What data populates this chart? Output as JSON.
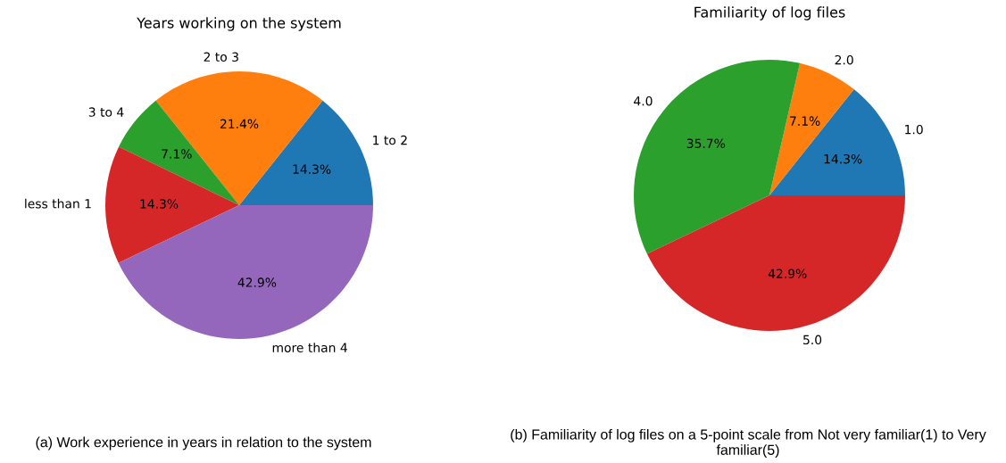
{
  "chart_data": [
    {
      "type": "pie",
      "title": "Years working on the system",
      "categories": [
        "1 to 2",
        "2 to 3",
        "3 to 4",
        "less than 1",
        "more than 4"
      ],
      "values": [
        14.3,
        21.4,
        7.1,
        14.3,
        42.9
      ],
      "value_labels": [
        "14.3%",
        "21.4%",
        "7.1%",
        "14.3%",
        "42.9%"
      ],
      "colors": [
        "#1f77b4",
        "#ff7f0e",
        "#2ca02c",
        "#d62728",
        "#9467bd"
      ],
      "annotations": [
        "(a) Work experience in years in relation to the system"
      ]
    },
    {
      "type": "pie",
      "title": "Familiarity of log files",
      "categories": [
        "1.0",
        "2.0",
        "4.0",
        "5.0"
      ],
      "values": [
        14.3,
        7.1,
        35.7,
        42.9
      ],
      "value_labels": [
        "14.3%",
        "7.1%",
        "35.7%",
        "42.9%"
      ],
      "colors": [
        "#1f77b4",
        "#ff7f0e",
        "#2ca02c",
        "#d62728"
      ],
      "annotations": [
        "(b) Familiarity of log files on a 5-point scale from Not very familiar(1) to Very familiar(5)"
      ]
    }
  ]
}
